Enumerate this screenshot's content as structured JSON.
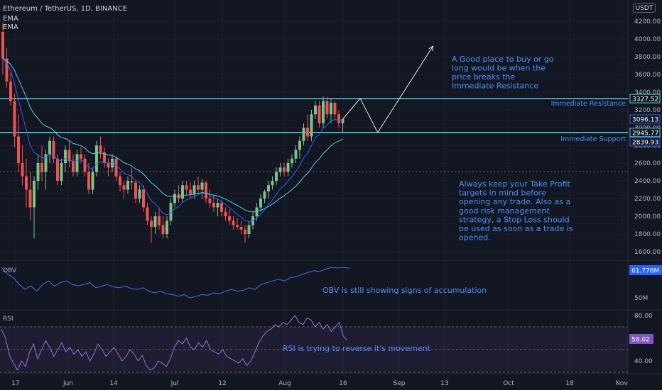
{
  "header": {
    "symbol": "Ethereum / TetherUS, 1D, BINANCE",
    "indicators": [
      "EMA",
      "EMA"
    ],
    "currency": "USDT"
  },
  "colors": {
    "background": "#131722",
    "up": "#26a69a",
    "up_bar": "#7ec08a",
    "down": "#ef5350",
    "ema_fast": "#2962ff",
    "ema_slow": "#4dd0e1",
    "level_line": "#4dd0e1",
    "annotation": "#4a90ff",
    "grid": "#1e2230",
    "axis_text": "#b2b5be",
    "obv": "#4a6cf7",
    "rsi": "#a06cd5"
  },
  "chart_data": [
    {
      "type": "candlestick",
      "title": "Ethereum / TetherUS, 1D, BINANCE",
      "y_axis": {
        "ticks": [
          "4200.00",
          "4000.00",
          "3800.00",
          "3600.00",
          "3400.00",
          "3200.00",
          "3000.00",
          "2800.00",
          "2600.00",
          "2400.00",
          "2200.00",
          "2000.00",
          "1800.00",
          "1600.00"
        ],
        "ylim": [
          1500,
          4300
        ]
      },
      "x_axis": {
        "ticks": [
          "17",
          "Jun",
          "14",
          "Jul",
          "12",
          "Aug",
          "16",
          "Sep",
          "13",
          "Oct",
          "18",
          "Nov"
        ]
      },
      "price_labels": [
        {
          "text": "3327.52",
          "value": 3327.52
        },
        {
          "text": "3096.13",
          "value": 3096.13
        },
        {
          "text": "2945.77",
          "value": 2945.77
        },
        {
          "text": "2839.93",
          "value": 2839.93
        }
      ],
      "levels": [
        {
          "name": "Immediate Resistance",
          "value": 3327.52
        },
        {
          "name": "Immediate Support",
          "value": 2945.77
        }
      ],
      "projection": [
        {
          "day": 0,
          "price": 3096
        },
        {
          "day": 6,
          "price": 3330
        },
        {
          "day": 12,
          "price": 2945
        },
        {
          "day": 31,
          "price": 3920
        }
      ],
      "annotations": [
        {
          "name": "buy-note",
          "lines": [
            "A Good place to buy or go",
            "long would be when the",
            "price breaks the",
            "Immediate Resistance"
          ]
        },
        {
          "name": "risk-note",
          "lines": [
            "Always keep your Take Profit",
            "targets in mind before",
            "opening any trade. Also as a",
            "good risk management",
            "strategy, a Stop Loss should",
            "be used as soon as a trade is",
            "opened."
          ]
        }
      ],
      "candles_ohlc": [
        [
          4080,
          4180,
          3600,
          3780
        ],
        [
          3780,
          3900,
          3450,
          3520
        ],
        [
          3520,
          3620,
          3250,
          3300
        ],
        [
          3300,
          3380,
          2780,
          2900
        ],
        [
          2900,
          3150,
          2500,
          2600
        ],
        [
          2600,
          2800,
          2350,
          2450
        ],
        [
          2450,
          2650,
          2100,
          2300
        ],
        [
          2300,
          2500,
          1950,
          2100
        ],
        [
          2100,
          2450,
          1750,
          2400
        ],
        [
          2400,
          2700,
          2300,
          2600
        ],
        [
          2600,
          2800,
          2400,
          2500
        ],
        [
          2500,
          2750,
          2300,
          2700
        ],
        [
          2700,
          2900,
          2600,
          2850
        ],
        [
          2850,
          2900,
          2600,
          2650
        ],
        [
          2650,
          2700,
          2350,
          2400
        ],
        [
          2400,
          2650,
          2350,
          2600
        ],
        [
          2600,
          2800,
          2500,
          2750
        ],
        [
          2750,
          2850,
          2550,
          2620
        ],
        [
          2620,
          2700,
          2450,
          2500
        ],
        [
          2500,
          2750,
          2450,
          2700
        ],
        [
          2700,
          2780,
          2600,
          2650
        ],
        [
          2650,
          2700,
          2450,
          2500
        ],
        [
          2500,
          2600,
          2250,
          2300
        ],
        [
          2300,
          2550,
          2250,
          2500
        ],
        [
          2500,
          2850,
          2450,
          2800
        ],
        [
          2800,
          2900,
          2650,
          2720
        ],
        [
          2720,
          2780,
          2550,
          2600
        ],
        [
          2600,
          2650,
          2450,
          2550
        ],
        [
          2550,
          2700,
          2500,
          2650
        ],
        [
          2650,
          2680,
          2400,
          2450
        ],
        [
          2450,
          2500,
          2280,
          2350
        ],
        [
          2350,
          2400,
          2200,
          2300
        ],
        [
          2300,
          2450,
          2250,
          2400
        ],
        [
          2400,
          2550,
          2300,
          2380
        ],
        [
          2380,
          2400,
          2150,
          2200
        ],
        [
          2200,
          2350,
          2150,
          2300
        ],
        [
          2300,
          2350,
          2050,
          2100
        ],
        [
          2100,
          2150,
          1900,
          1950
        ],
        [
          1950,
          2000,
          1700,
          1880
        ],
        [
          1880,
          2050,
          1800,
          2000
        ],
        [
          2000,
          2100,
          1850,
          1900
        ],
        [
          1900,
          2000,
          1750,
          1800
        ],
        [
          1800,
          2000,
          1750,
          1950
        ],
        [
          1950,
          2200,
          1900,
          2150
        ],
        [
          2150,
          2300,
          2100,
          2250
        ],
        [
          2250,
          2350,
          2150,
          2200
        ],
        [
          2200,
          2400,
          2150,
          2350
        ],
        [
          2350,
          2400,
          2250,
          2300
        ],
        [
          2300,
          2380,
          2200,
          2250
        ],
        [
          2250,
          2400,
          2200,
          2350
        ],
        [
          2350,
          2450,
          2250,
          2300
        ],
        [
          2300,
          2420,
          2200,
          2380
        ],
        [
          2380,
          2400,
          2150,
          2200
        ],
        [
          2200,
          2300,
          2100,
          2150
        ],
        [
          2150,
          2250,
          2050,
          2100
        ],
        [
          2100,
          2200,
          2000,
          2150
        ],
        [
          2150,
          2180,
          2000,
          2050
        ],
        [
          2050,
          2100,
          1950,
          2000
        ],
        [
          2000,
          2080,
          1900,
          1950
        ],
        [
          1950,
          2000,
          1850,
          1900
        ],
        [
          1900,
          1980,
          1850,
          1880
        ],
        [
          1880,
          1950,
          1800,
          1850
        ],
        [
          1850,
          1900,
          1700,
          1800
        ],
        [
          1800,
          1950,
          1750,
          1900
        ],
        [
          1900,
          2050,
          1850,
          2000
        ],
        [
          2000,
          2150,
          1950,
          2100
        ],
        [
          2100,
          2250,
          2050,
          2200
        ],
        [
          2200,
          2300,
          2150,
          2280
        ],
        [
          2280,
          2400,
          2200,
          2350
        ],
        [
          2350,
          2450,
          2300,
          2400
        ],
        [
          2400,
          2550,
          2350,
          2500
        ],
        [
          2500,
          2600,
          2450,
          2550
        ],
        [
          2550,
          2600,
          2450,
          2500
        ],
        [
          2500,
          2650,
          2450,
          2600
        ],
        [
          2600,
          2700,
          2550,
          2650
        ],
        [
          2650,
          2800,
          2600,
          2750
        ],
        [
          2750,
          2900,
          2650,
          2850
        ],
        [
          2850,
          3050,
          2800,
          3000
        ],
        [
          3000,
          3150,
          2850,
          2900
        ],
        [
          2900,
          3200,
          2850,
          3150
        ],
        [
          3150,
          3300,
          3100,
          3250
        ],
        [
          3250,
          3300,
          3000,
          3050
        ],
        [
          3050,
          3350,
          3000,
          3300
        ],
        [
          3300,
          3350,
          3100,
          3150
        ],
        [
          3150,
          3330,
          3050,
          3280
        ],
        [
          3280,
          3300,
          3100,
          3150
        ],
        [
          3150,
          3200,
          3000,
          3050
        ],
        [
          3050,
          3100,
          2950,
          3096
        ]
      ]
    },
    {
      "type": "line",
      "title": "OBV",
      "value_label": "61.776M",
      "ticks": [
        "50M"
      ],
      "annotation": "OBV is still showing signs of accumulation",
      "values": [
        1.0,
        0.8,
        0.7,
        0.5,
        0.35,
        0.45,
        0.3,
        0.5,
        0.6,
        0.45,
        0.55,
        0.6,
        0.5,
        0.45,
        0.5,
        0.55,
        0.4,
        0.45,
        0.5,
        0.42,
        0.4,
        0.45,
        0.38,
        0.35,
        0.4,
        0.3,
        0.25,
        0.3,
        0.22,
        0.2,
        0.15,
        0.2,
        0.1,
        0.15,
        0.2,
        0.18,
        0.25,
        0.22,
        0.3,
        0.35,
        0.3,
        0.32,
        0.4,
        0.35,
        0.5,
        0.55,
        0.6,
        0.65,
        0.6,
        0.7,
        0.72,
        0.8,
        0.85,
        0.9,
        0.88,
        0.95,
        1.0,
        0.98,
        1.0,
        0.97
      ]
    },
    {
      "type": "line",
      "title": "RSI",
      "value_label": "58.02",
      "ticks": [
        "80.00",
        "40.00"
      ],
      "ylim": [
        30,
        85
      ],
      "bands": [
        70,
        30
      ],
      "annotation": "RSI is trying to reverse it's movement",
      "values": [
        68,
        60,
        45,
        38,
        32,
        40,
        35,
        48,
        55,
        42,
        50,
        58,
        52,
        44,
        50,
        56,
        48,
        52,
        46,
        50,
        44,
        48,
        40,
        46,
        55,
        50,
        44,
        48,
        52,
        46,
        40,
        44,
        50,
        46,
        40,
        45,
        36,
        32,
        34,
        40,
        38,
        35,
        42,
        52,
        58,
        55,
        60,
        52,
        50,
        56,
        52,
        58,
        50,
        48,
        46,
        50,
        44,
        42,
        40,
        38,
        42,
        36,
        40,
        48,
        56,
        62,
        66,
        68,
        72,
        70,
        74,
        72,
        76,
        80,
        74,
        72,
        78,
        76,
        70,
        74,
        68,
        72,
        66,
        70,
        74,
        62,
        58
      ]
    }
  ]
}
